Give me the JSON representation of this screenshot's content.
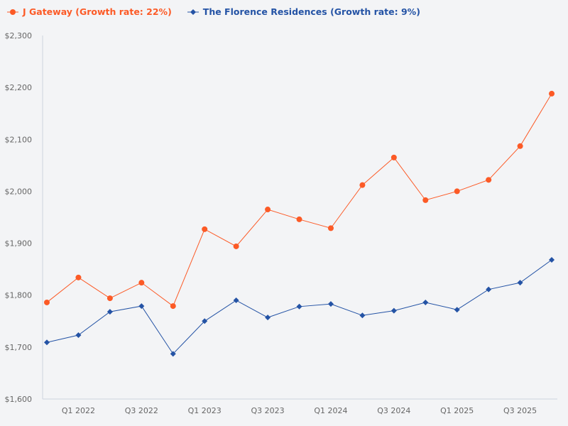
{
  "chart_data": {
    "type": "line",
    "title": "",
    "xlabel": "",
    "ylabel": "",
    "ylim": [
      1600,
      2300
    ],
    "y_ticks": [
      1600,
      1700,
      1800,
      1900,
      2000,
      2100,
      2200,
      2300
    ],
    "y_tick_format": "$#,###",
    "grid": false,
    "legend_position": "top-left",
    "point_count": 17,
    "x_tick_labels": [
      {
        "index": 1,
        "label": "Q1 2022"
      },
      {
        "index": 3,
        "label": "Q3 2022"
      },
      {
        "index": 5,
        "label": "Q1 2023"
      },
      {
        "index": 7,
        "label": "Q3 2023"
      },
      {
        "index": 9,
        "label": "Q1 2024"
      },
      {
        "index": 11,
        "label": "Q3 2024"
      },
      {
        "index": 13,
        "label": "Q1 2025"
      },
      {
        "index": 15,
        "label": "Q3 2025"
      }
    ],
    "series": [
      {
        "name": "J Gateway (Growth rate: 22%)",
        "color": "#fc5a26",
        "marker": "circle",
        "values": [
          1786,
          1834,
          1794,
          1824,
          1779,
          1927,
          1894,
          1965,
          1946,
          1929,
          2012,
          2065,
          1983,
          2000,
          2022,
          2087,
          2188
        ]
      },
      {
        "name": "The Florence Residences (Growth rate: 9%)",
        "color": "#2453a5",
        "marker": "diamond",
        "values": [
          1709,
          1723,
          1768,
          1779,
          1687,
          1750,
          1790,
          1757,
          1778,
          1783,
          1761,
          1770,
          1786,
          1772,
          1811,
          1824,
          1868
        ]
      }
    ]
  }
}
